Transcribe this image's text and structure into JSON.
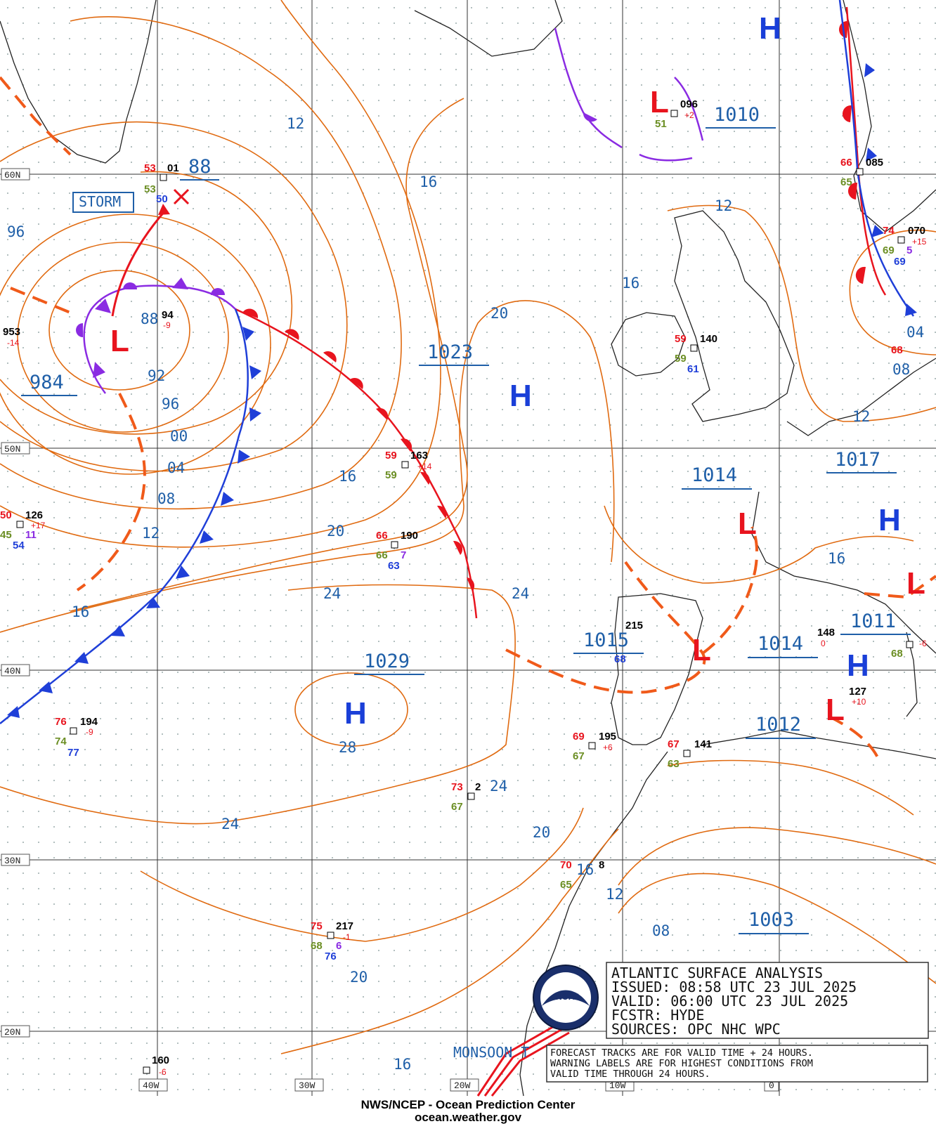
{
  "map": {
    "footer_line1": "NWS/NCEP - Ocean Prediction Center",
    "footer_line2": "ocean.weather.gov",
    "storm_label": "STORM",
    "monsoon_label": "MONSOON T",
    "latitudes": [
      "60N",
      "50N",
      "40N",
      "30N",
      "20N"
    ],
    "longitudes": [
      "40W",
      "30W",
      "20W",
      "10W",
      "0"
    ],
    "colors": {
      "isobar": "#e06a10",
      "cold_front": "#1f3fd8",
      "warm_front": "#e8141e",
      "occluded": "#8a2be2",
      "trough": "#f05a1a",
      "label_blue": "#1f5fa8"
    }
  },
  "info_box": {
    "line1": "ATLANTIC SURFACE ANALYSIS",
    "line2": "ISSUED: 08:58 UTC 23 JUL 2025",
    "line3": "VALID:  06:00 UTC 23 JUL 2025",
    "line4": "FCSTR:  HYDE",
    "line5": "SOURCES: OPC NHC WPC"
  },
  "note_box": {
    "line1": "FORECAST TRACKS ARE FOR VALID TIME + 24 HOURS.",
    "line2": "WARNING LABELS ARE FOR HIGHEST CONDITIONS FROM",
    "line3": "VALID TIME THROUGH 24 HOURS."
  },
  "pressure_centers": [
    {
      "type": "L",
      "value": "984"
    },
    {
      "type": "L",
      "value": "1010"
    },
    {
      "type": "H",
      "value": "1023"
    },
    {
      "type": "H",
      "value": "1029"
    },
    {
      "type": "H",
      "value": "1017"
    },
    {
      "type": "L",
      "value": "1014"
    },
    {
      "type": "L",
      "value": "1015"
    },
    {
      "type": "L",
      "value": "1014"
    },
    {
      "type": "H",
      "value": "1011"
    },
    {
      "type": "L",
      "value": "1012"
    },
    {
      "type": "L",
      "value": "1003"
    },
    {
      "type": "L",
      "value": "88"
    }
  ],
  "isobar_labels": [
    "12",
    "16",
    "96",
    "20",
    "16",
    "12",
    "04",
    "08",
    "12",
    "92",
    "96",
    "00",
    "04",
    "08",
    "12",
    "16",
    "16",
    "20",
    "24",
    "24",
    "28",
    "24",
    "24",
    "20",
    "16",
    "12",
    "08",
    "20",
    "16",
    "88",
    "16"
  ],
  "observations": [
    {
      "t": "53",
      "p": "01",
      "d": "53",
      "x": "50"
    },
    {
      "t": "",
      "p": "94",
      "d": "",
      "x": "-9"
    },
    {
      "t": "",
      "p": "953",
      "d": "",
      "x": "-14"
    },
    {
      "t": "50",
      "p": "126",
      "d": "45",
      "x": "+17",
      "v": "11",
      "w": "54"
    },
    {
      "t": "59",
      "p": "163",
      "d": "59",
      "x": "+14"
    },
    {
      "t": "66",
      "p": "190",
      "d": "66",
      "v": "7",
      "w": "63"
    },
    {
      "t": "76",
      "p": "194",
      "d": "74",
      "x": "-9",
      "w": "77"
    },
    {
      "t": "73",
      "p": "2",
      "d": "67"
    },
    {
      "t": "75",
      "p": "217",
      "d": "68",
      "x": "-1",
      "v": "6",
      "w": "76"
    },
    {
      "t": "",
      "p": "160",
      "d": "",
      "x": "-6"
    },
    {
      "t": "69",
      "p": "195",
      "d": "67",
      "x": "+6"
    },
    {
      "t": "67",
      "p": "141",
      "d": "63"
    },
    {
      "t": "70",
      "p": "8",
      "d": "65"
    },
    {
      "t": "59",
      "p": "140",
      "d": "59",
      "w": "61"
    },
    {
      "t": "",
      "p": "096",
      "d": "51",
      "x": "+2"
    },
    {
      "t": "66",
      "p": "085",
      "d": "65"
    },
    {
      "t": "74",
      "p": "070",
      "d": "69",
      "x": "+15",
      "v": "5",
      "w": "69"
    },
    {
      "t": "68",
      "p": "",
      "d": ""
    },
    {
      "t": "",
      "p": "148",
      "d": "",
      "x": "0"
    },
    {
      "t": "",
      "p": "127",
      "d": "",
      "x": "+10"
    },
    {
      "t": "",
      "p": "",
      "d": "68",
      "x": "-6"
    },
    {
      "t": "",
      "p": "215",
      "d": "",
      "w": "68"
    }
  ]
}
